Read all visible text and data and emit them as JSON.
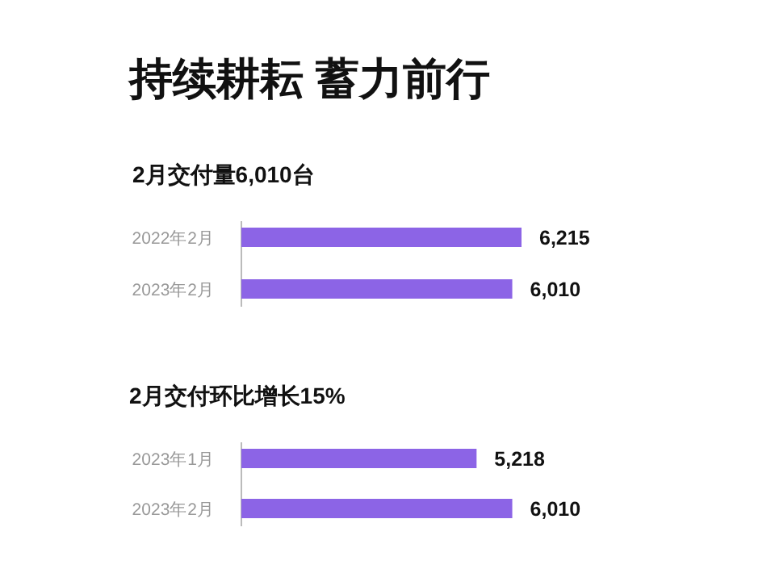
{
  "chart_data": [
    {
      "type": "bar",
      "orientation": "horizontal",
      "title": "持续耕耘 蓄力前行",
      "subtitle": "2月交付量6,010台",
      "categories": [
        "2022年2月",
        "2023年2月"
      ],
      "values": [
        6215,
        6010
      ],
      "value_labels": [
        "6,215",
        "6,010"
      ],
      "color": "#8c64e6"
    },
    {
      "type": "bar",
      "orientation": "horizontal",
      "title": "2月交付环比增长15%",
      "categories": [
        "2023年1月",
        "2023年2月"
      ],
      "values": [
        5218,
        6010
      ],
      "value_labels": [
        "5,218",
        "6,010"
      ],
      "color": "#8c64e6"
    }
  ]
}
